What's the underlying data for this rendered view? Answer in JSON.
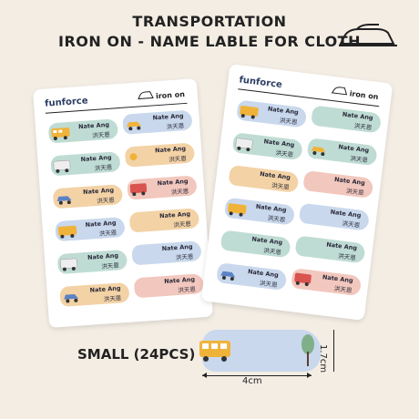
{
  "header": {
    "line1": "TRANSPORTATION",
    "line2": "IRON ON - NAME LABLE FOR CLOTH"
  },
  "sheet": {
    "brand": "funforce",
    "iron_on": "iron on"
  },
  "label": {
    "name": "Nate Ang",
    "chinese": "洪天恩"
  },
  "size_info": {
    "title": "SMALL (24PCS)",
    "width": "4cm",
    "height": "1.7cm"
  },
  "colors": {
    "background": "#f3ede4",
    "green": "#bfdcd4",
    "blue": "#c9d8ec",
    "orange": "#f3d2a5",
    "pink": "#f2c7bd",
    "bus": "#f0b33a"
  }
}
